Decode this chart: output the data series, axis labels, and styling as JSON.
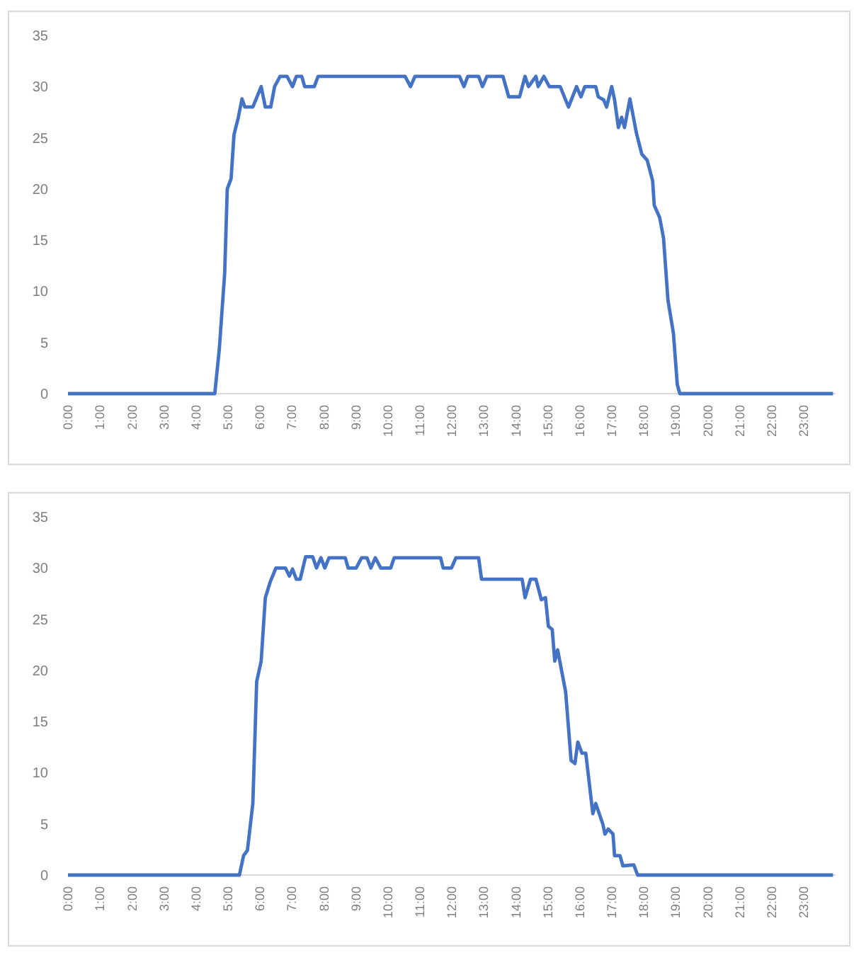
{
  "chart_data": [
    {
      "type": "line",
      "x": [
        0,
        4.59,
        4.73,
        4.9,
        4.98,
        5.1,
        5.19,
        5.32,
        5.44,
        5.53,
        5.78,
        6.04,
        6.17,
        6.34,
        6.46,
        6.63,
        6.85,
        7.02,
        7.14,
        7.31,
        7.4,
        7.7,
        7.82,
        10.54,
        10.71,
        10.85,
        12.24,
        12.38,
        12.5,
        12.84,
        12.96,
        13.1,
        13.6,
        13.78,
        14.12,
        14.29,
        14.4,
        14.63,
        14.7,
        14.88,
        15.05,
        15.39,
        15.65,
        15.9,
        16.04,
        16.16,
        16.5,
        16.58,
        16.75,
        16.84,
        17.0,
        17.09,
        17.21,
        17.31,
        17.4,
        17.57,
        17.77,
        17.94,
        18.11,
        18.28,
        18.33,
        18.5,
        18.62,
        18.76,
        18.93,
        19.05,
        19.13,
        23.92
      ],
      "series": [
        {
          "color": "#4472c4",
          "values": [
            0,
            0,
            4.3,
            11.8,
            20,
            21,
            25.3,
            26.9,
            28.8,
            28,
            28,
            30,
            28,
            28,
            30,
            31,
            31,
            30,
            31,
            31,
            30,
            30,
            31,
            31,
            30,
            31,
            31,
            30,
            31,
            31,
            30,
            31,
            31,
            29,
            29,
            31,
            30,
            31,
            30,
            31,
            30,
            30,
            28,
            30,
            29,
            30,
            30,
            29,
            28.7,
            28,
            30,
            28.7,
            26,
            27,
            26,
            28.8,
            25.5,
            23.4,
            22.8,
            20.8,
            18.4,
            17.2,
            15.2,
            9.1,
            5.9,
            0.9,
            0,
            0
          ]
        }
      ],
      "xlim": [
        0,
        24
      ],
      "xticks": [
        {
          "value": 0,
          "label": "0:00"
        },
        {
          "value": 1,
          "label": "1:00"
        },
        {
          "value": 2,
          "label": "2:00"
        },
        {
          "value": 3,
          "label": "3:00"
        },
        {
          "value": 4,
          "label": "4:00"
        },
        {
          "value": 5,
          "label": "5:00"
        },
        {
          "value": 6,
          "label": "6:00"
        },
        {
          "value": 7,
          "label": "7:00"
        },
        {
          "value": 8,
          "label": "8:00"
        },
        {
          "value": 9,
          "label": "9:00"
        },
        {
          "value": 10,
          "label": "10:00"
        },
        {
          "value": 11,
          "label": "11:00"
        },
        {
          "value": 12,
          "label": "12:00"
        },
        {
          "value": 13,
          "label": "13:00"
        },
        {
          "value": 14,
          "label": "14:00"
        },
        {
          "value": 15,
          "label": "15:00"
        },
        {
          "value": 16,
          "label": "16:00"
        },
        {
          "value": 17,
          "label": "17:00"
        },
        {
          "value": 18,
          "label": "18:00"
        },
        {
          "value": 19,
          "label": "19:00"
        },
        {
          "value": 20,
          "label": "20:00"
        },
        {
          "value": 21,
          "label": "21:00"
        },
        {
          "value": 22,
          "label": "22:00"
        },
        {
          "value": 23,
          "label": "23:00"
        }
      ],
      "ylim": [
        0,
        35
      ],
      "yticks": [
        0,
        5,
        10,
        15,
        20,
        25,
        30,
        35
      ],
      "grid": false
    },
    {
      "type": "line",
      "x": [
        0,
        5.36,
        5.49,
        5.61,
        5.78,
        5.9,
        6.04,
        6.17,
        6.33,
        6.5,
        6.8,
        6.92,
        7.02,
        7.14,
        7.26,
        7.43,
        7.65,
        7.77,
        7.91,
        8.03,
        8.16,
        8.67,
        8.76,
        9.01,
        9.18,
        9.35,
        9.47,
        9.61,
        9.78,
        10.09,
        10.2,
        11.65,
        11.73,
        11.99,
        12.13,
        12.84,
        12.93,
        14.2,
        14.29,
        14.46,
        14.63,
        14.8,
        14.93,
        15.02,
        15.14,
        15.22,
        15.31,
        15.56,
        15.73,
        15.85,
        15.94,
        16.07,
        16.19,
        16.41,
        16.5,
        16.72,
        16.79,
        16.89,
        17.04,
        17.09,
        17.26,
        17.35,
        17.69,
        17.81,
        23.92
      ],
      "series": [
        {
          "color": "#4472c4",
          "values": [
            0,
            0,
            1.9,
            2.4,
            7,
            18.9,
            20.9,
            27.1,
            28.7,
            30,
            30,
            29.2,
            29.9,
            28.9,
            28.9,
            31.1,
            31.1,
            30,
            31,
            30,
            31,
            31,
            30,
            30,
            31,
            31,
            30,
            31,
            30,
            30,
            31,
            31,
            30,
            30,
            31,
            31,
            28.9,
            28.9,
            27.1,
            28.9,
            28.9,
            26.9,
            27.1,
            24.3,
            24,
            20.9,
            22,
            17.9,
            11.2,
            10.9,
            13,
            11.9,
            11.9,
            6,
            7,
            5,
            4,
            4.5,
            4,
            1.9,
            1.9,
            0.9,
            1,
            0,
            0
          ]
        }
      ],
      "xlim": [
        0,
        24
      ],
      "xticks": [
        {
          "value": 0,
          "label": "0:00"
        },
        {
          "value": 1,
          "label": "1:00"
        },
        {
          "value": 2,
          "label": "2:00"
        },
        {
          "value": 3,
          "label": "3:00"
        },
        {
          "value": 4,
          "label": "4:00"
        },
        {
          "value": 5,
          "label": "5:00"
        },
        {
          "value": 6,
          "label": "6:00"
        },
        {
          "value": 7,
          "label": "7:00"
        },
        {
          "value": 8,
          "label": "8:00"
        },
        {
          "value": 9,
          "label": "9:00"
        },
        {
          "value": 10,
          "label": "10:00"
        },
        {
          "value": 11,
          "label": "11:00"
        },
        {
          "value": 12,
          "label": "12:00"
        },
        {
          "value": 13,
          "label": "13:00"
        },
        {
          "value": 14,
          "label": "14:00"
        },
        {
          "value": 15,
          "label": "15:00"
        },
        {
          "value": 16,
          "label": "16:00"
        },
        {
          "value": 17,
          "label": "17:00"
        },
        {
          "value": 18,
          "label": "18:00"
        },
        {
          "value": 19,
          "label": "19:00"
        },
        {
          "value": 20,
          "label": "20:00"
        },
        {
          "value": 21,
          "label": "21:00"
        },
        {
          "value": 22,
          "label": "22:00"
        },
        {
          "value": 23,
          "label": "23:00"
        }
      ],
      "ylim": [
        0,
        35
      ],
      "yticks": [
        0,
        5,
        10,
        15,
        20,
        25,
        30,
        35
      ],
      "grid": false
    }
  ]
}
